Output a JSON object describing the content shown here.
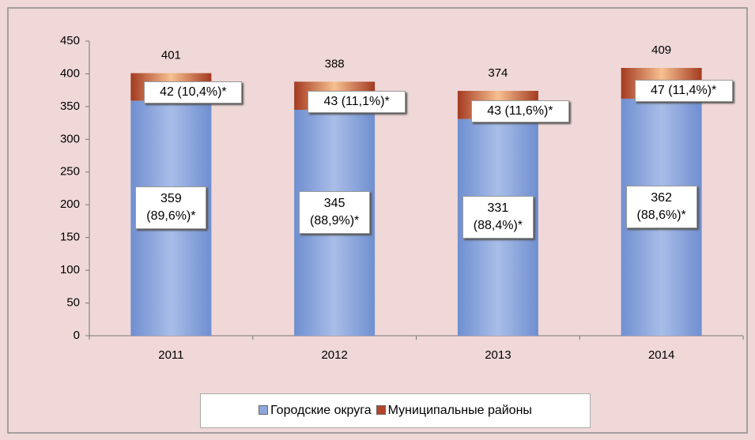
{
  "chart_data": {
    "type": "bar",
    "stacked": true,
    "categories": [
      "2011",
      "2012",
      "2013",
      "2014"
    ],
    "series": [
      {
        "name": "Городские округа",
        "color": "#8ea6dc",
        "values": [
          359,
          345,
          331,
          362
        ],
        "value_labels": [
          "359 (89,6%)*",
          "345 (88,9%)*",
          "331 (88,4%)*",
          "362 (88,6%)*"
        ]
      },
      {
        "name": "Муниципальные районы",
        "color": "#b5432a",
        "values": [
          42,
          43,
          43,
          47
        ],
        "value_labels": [
          "42 (10,4%)*",
          "43 (11,1%)*",
          "43 (11,6%)*",
          "47 (11,4%)*"
        ]
      }
    ],
    "total_labels": [
      "401",
      "388",
      "374",
      "409"
    ],
    "ylim": [
      0,
      450
    ],
    "yticks": [
      0,
      50,
      100,
      150,
      200,
      250,
      300,
      350,
      400,
      450
    ],
    "legend": "bottom"
  }
}
